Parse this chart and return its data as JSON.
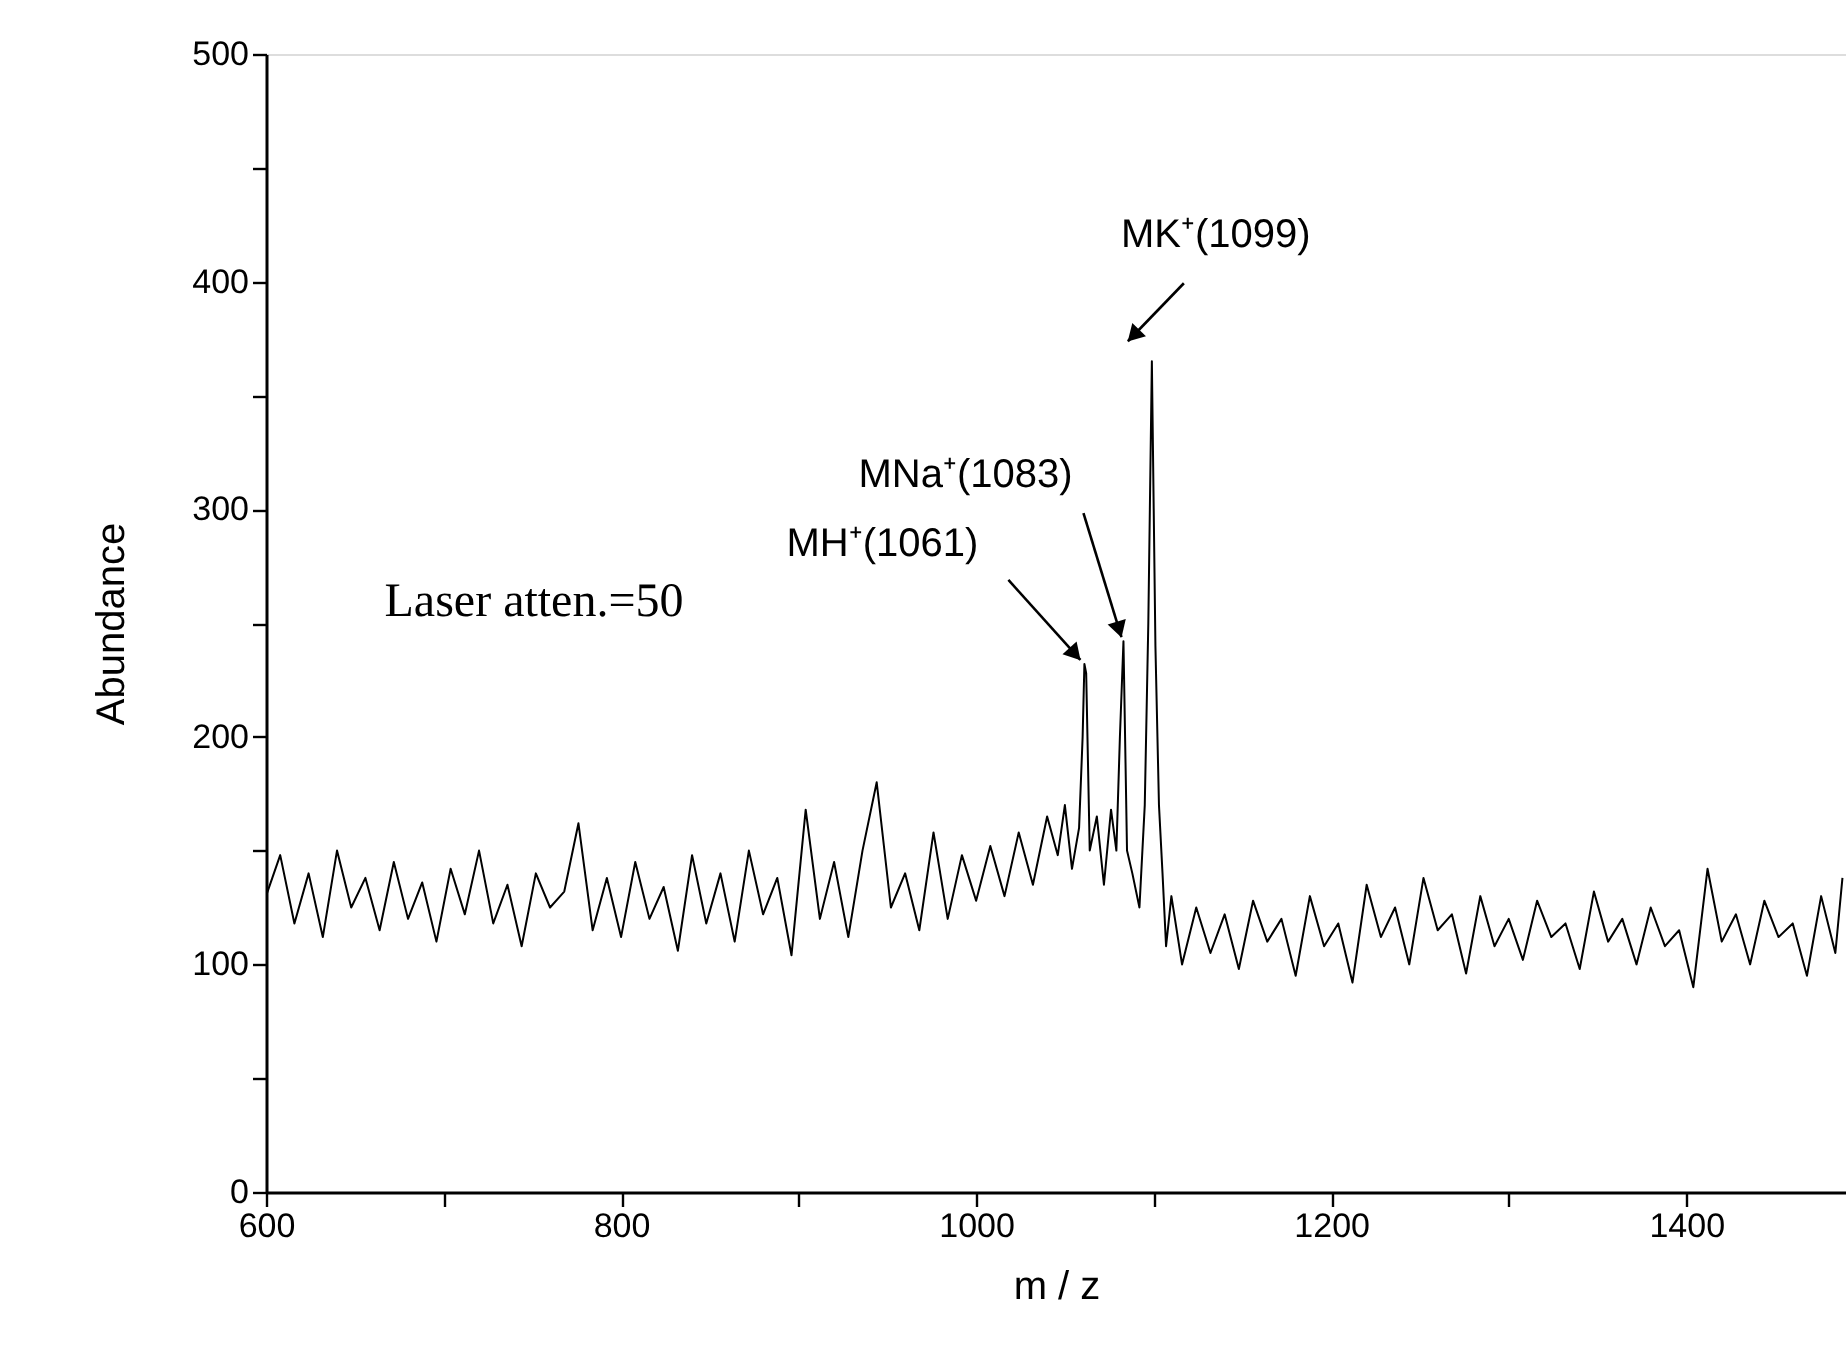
{
  "chart_data": {
    "type": "line",
    "xlabel": "m / z",
    "ylabel": "Abundance",
    "x": [
      600,
      608,
      616,
      624,
      632,
      640,
      648,
      656,
      664,
      672,
      680,
      688,
      696,
      704,
      712,
      720,
      728,
      736,
      744,
      752,
      760,
      768,
      776,
      784,
      792,
      800,
      808,
      816,
      824,
      832,
      840,
      848,
      856,
      864,
      872,
      880,
      888,
      896,
      904,
      912,
      920,
      928,
      936,
      944,
      952,
      960,
      968,
      976,
      984,
      992,
      1000,
      1008,
      1016,
      1024,
      1032,
      1040,
      1046,
      1050,
      1054,
      1058,
      1060,
      1061,
      1062,
      1064,
      1068,
      1072,
      1076,
      1079,
      1081,
      1083,
      1085,
      1088,
      1092,
      1095,
      1097,
      1099,
      1101,
      1103,
      1105,
      1107,
      1110,
      1116,
      1124,
      1132,
      1140,
      1148,
      1156,
      1164,
      1172,
      1180,
      1188,
      1196,
      1204,
      1212,
      1220,
      1228,
      1236,
      1244,
      1252,
      1260,
      1268,
      1276,
      1284,
      1292,
      1300,
      1308,
      1316,
      1324,
      1332,
      1340,
      1348,
      1356,
      1364,
      1372,
      1380,
      1388,
      1396,
      1404,
      1412,
      1420,
      1428,
      1436,
      1444,
      1452,
      1460,
      1468,
      1476,
      1484,
      1488
    ],
    "series": [
      {
        "color": "#000000",
        "values": [
          130,
          148,
          118,
          140,
          112,
          150,
          125,
          138,
          115,
          145,
          120,
          136,
          110,
          142,
          122,
          150,
          118,
          135,
          108,
          140,
          125,
          132,
          162,
          115,
          138,
          112,
          145,
          120,
          134,
          106,
          148,
          118,
          140,
          110,
          150,
          122,
          138,
          104,
          168,
          120,
          145,
          112,
          150,
          180,
          125,
          140,
          115,
          158,
          120,
          148,
          128,
          152,
          130,
          158,
          135,
          165,
          148,
          170,
          142,
          160,
          200,
          232,
          228,
          150,
          165,
          135,
          168,
          150,
          200,
          242,
          150,
          140,
          125,
          170,
          250,
          365,
          240,
          170,
          140,
          108,
          130,
          100,
          125,
          105,
          122,
          98,
          128,
          110,
          120,
          95,
          130,
          108,
          118,
          92,
          135,
          112,
          125,
          100,
          138,
          115,
          122,
          96,
          130,
          108,
          120,
          102,
          128,
          112,
          118,
          98,
          132,
          110,
          120,
          100,
          125,
          108,
          115,
          90,
          142,
          110,
          122,
          100,
          128,
          112,
          118,
          95,
          130,
          105,
          138
        ]
      }
    ],
    "xlim": [
      600,
      1490
    ],
    "xticks": [
      600,
      {
        "value": 700,
        "label": null
      },
      800,
      {
        "value": 900,
        "label": null
      },
      1000,
      {
        "value": 1100,
        "label": null
      },
      1200,
      {
        "value": 1300,
        "label": null
      },
      1400
    ],
    "ylim": [
      0,
      500
    ],
    "yticks": [
      0,
      {
        "value": 50,
        "label": null
      },
      100,
      {
        "value": 150,
        "label": null
      },
      200,
      {
        "value": 250,
        "label": null
      },
      300,
      {
        "value": 350,
        "label": null
      },
      400,
      {
        "value": 450,
        "label": null
      },
      500
    ],
    "grid": false,
    "marker": "none",
    "line_style": "solid",
    "annotations": [
      {
        "text": "MH⁺(1061)",
        "x": 1061,
        "y": 232
      },
      {
        "text": "MNa⁺(1083)",
        "x": 1083,
        "y": 242
      },
      {
        "text": "MK⁺(1099)",
        "x": 1099,
        "y": 365
      },
      "Laser atten.=50"
    ]
  }
}
